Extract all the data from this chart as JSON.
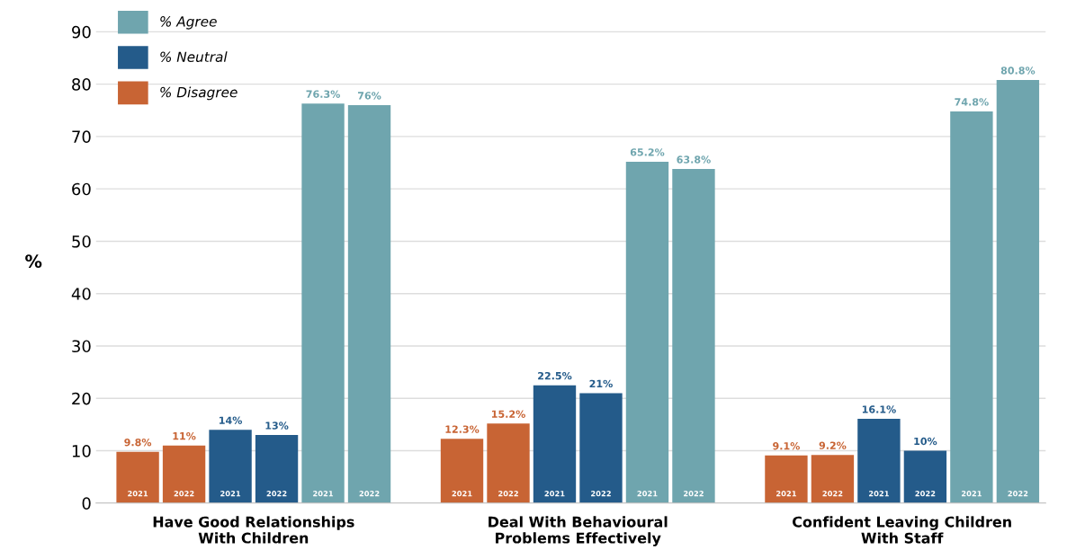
{
  "chart_data": {
    "type": "bar",
    "ylabel": "%",
    "categories": [
      "2021",
      "2022",
      "2021",
      "2022",
      "2021",
      "2022",
      null,
      "2021",
      "2022",
      "2021",
      "2022",
      "2021",
      "2022",
      null,
      "2021",
      "2022",
      "2021",
      "2022",
      "2021",
      "2022"
    ],
    "series": [
      {
        "name": "% Agree",
        "color": "#6fa5ae",
        "values": [
          null,
          null,
          null,
          null,
          76.3,
          76,
          null,
          null,
          null,
          null,
          null,
          65.2,
          63.8,
          null,
          null,
          null,
          null,
          null,
          74.8,
          80.8
        ],
        "value_labels": [
          null,
          null,
          null,
          null,
          "76.3%",
          "76%",
          null,
          null,
          null,
          null,
          null,
          "65.2%",
          "63.8%",
          null,
          null,
          null,
          null,
          null,
          "74.8%",
          "80.8%"
        ]
      },
      {
        "name": "% Neutral",
        "color": "#245b8a",
        "values": [
          null,
          null,
          14,
          13,
          null,
          null,
          null,
          null,
          null,
          22.5,
          21,
          null,
          null,
          null,
          null,
          null,
          16.1,
          10,
          null,
          null
        ],
        "value_labels": [
          null,
          null,
          "14%",
          "13%",
          null,
          null,
          null,
          null,
          null,
          "22.5%",
          "21%",
          null,
          null,
          null,
          null,
          null,
          "16.1%",
          "10%",
          null,
          null
        ]
      },
      {
        "name": "% Disagree",
        "color": "#c86434",
        "values": [
          9.8,
          11,
          null,
          null,
          null,
          null,
          null,
          12.3,
          15.2,
          null,
          null,
          null,
          null,
          null,
          9.1,
          9.2,
          null,
          null,
          null,
          null
        ],
        "value_labels": [
          "9.8%",
          "11%",
          null,
          null,
          null,
          null,
          null,
          "12.3%",
          "15.2%",
          null,
          null,
          null,
          null,
          null,
          "9.1%",
          "9.2%",
          null,
          null,
          null,
          null
        ]
      }
    ],
    "annotations": [
      "Have Good Relationships\nWith Children",
      "Deal With Behavioural\nProblems Effectively",
      "Confident Leaving Children\nWith Staff"
    ],
    "ylim": [
      0,
      90
    ],
    "yticks": [
      0,
      10,
      20,
      30,
      40,
      50,
      60,
      70,
      80,
      90
    ],
    "grid": "y",
    "legend": "top left"
  }
}
